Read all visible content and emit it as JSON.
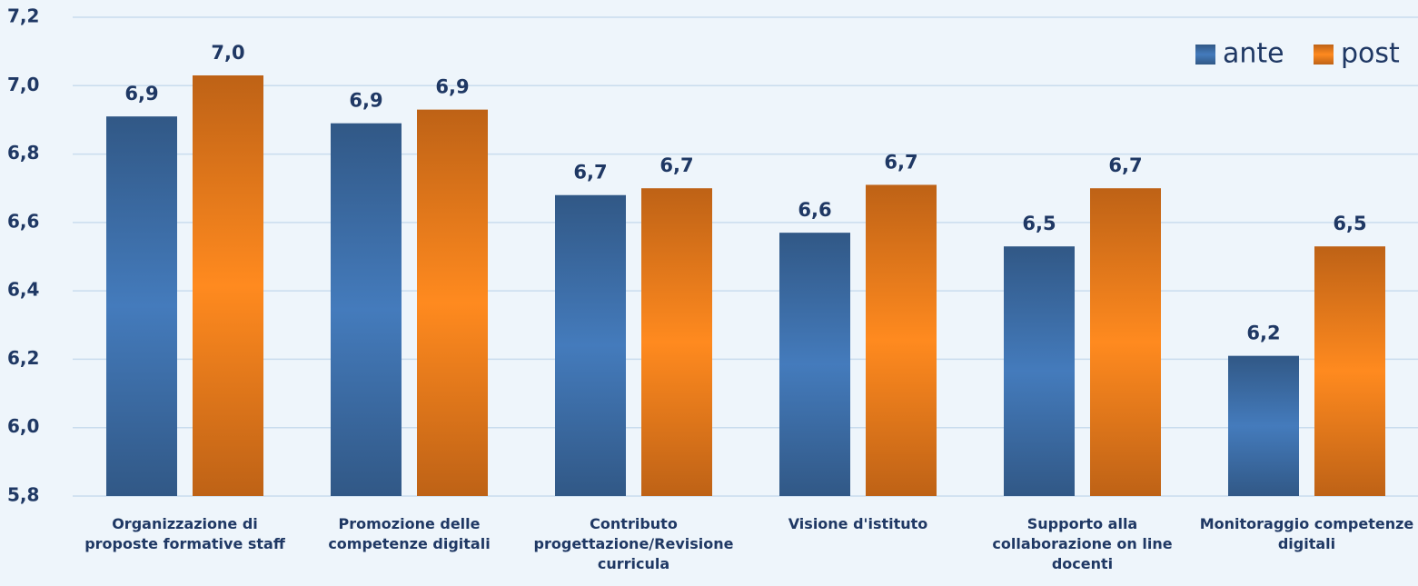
{
  "chart_data": {
    "type": "bar",
    "categories": [
      "Organizzazione di proposte formative staff",
      "Promozione delle competenze digitali",
      "Contributo progettazione/Revisione curricula",
      "Visione d'istituto",
      "Supporto alla collaborazione on line docenti",
      "Monitoraggio competenze digitali"
    ],
    "series": [
      {
        "name": "ante",
        "color": "#3d6ea8",
        "values": [
          6.91,
          6.89,
          6.68,
          6.57,
          6.53,
          6.21
        ],
        "value_labels": [
          "6,9",
          "6,9",
          "6,7",
          "6,6",
          "6,5",
          "6,2"
        ]
      },
      {
        "name": "post",
        "color": "#ee7b1c",
        "values": [
          7.03,
          6.93,
          6.7,
          6.71,
          6.7,
          6.53
        ],
        "value_labels": [
          "7,0",
          "6,9",
          "6,7",
          "6,7",
          "6,7",
          "6,5"
        ]
      }
    ],
    "ylim": [
      5.8,
      7.2
    ],
    "yticks": [
      {
        "value": 5.8,
        "label": "5,8"
      },
      {
        "value": 6.0,
        "label": "6,0"
      },
      {
        "value": 6.2,
        "label": "6,2"
      },
      {
        "value": 6.4,
        "label": "6,4"
      },
      {
        "value": 6.6,
        "label": "6,6"
      },
      {
        "value": 6.8,
        "label": "6,8"
      },
      {
        "value": 7.0,
        "label": "7,0"
      },
      {
        "value": 7.2,
        "label": "7,2"
      }
    ],
    "grid": true,
    "legend": "upper right"
  }
}
